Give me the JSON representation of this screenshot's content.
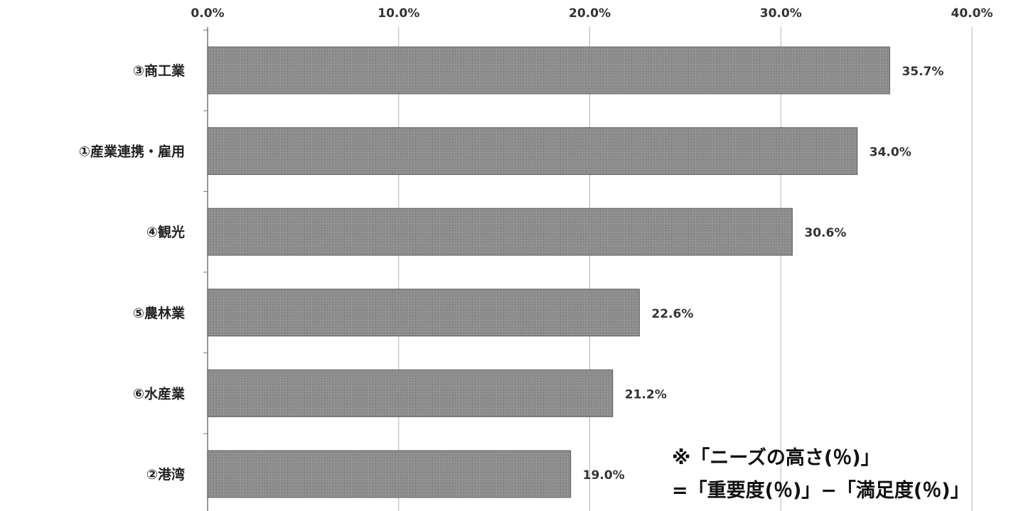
{
  "chart_data": {
    "type": "bar",
    "orientation": "horizontal",
    "categories": [
      "③商工業",
      "①産業連携・雇用",
      "④観光",
      "⑤農林業",
      "⑥水産業",
      "②港湾"
    ],
    "values": [
      35.7,
      34.0,
      30.6,
      22.6,
      21.2,
      19.0
    ],
    "value_labels": [
      "35.7%",
      "34.0%",
      "30.6%",
      "22.6%",
      "21.2%",
      "19.0%"
    ],
    "xlim": [
      0,
      40
    ],
    "x_ticks": [
      0,
      10,
      20,
      30,
      40
    ],
    "x_tick_labels": [
      "0.0%",
      "10.0%",
      "20.0%",
      "30.0%",
      "40.0%"
    ],
    "x_axis_position": "top",
    "grid": true,
    "bar_color": "#8c8c8c",
    "annotation": [
      "※「ニーズの高さ(％)」",
      "=「重要度(％)」−「満足度(％)」"
    ]
  }
}
